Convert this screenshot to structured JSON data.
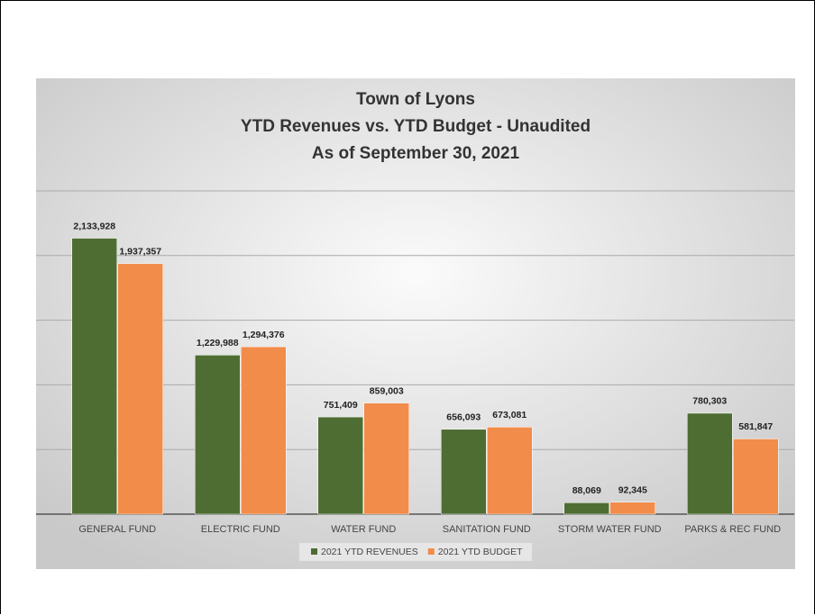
{
  "chart_data": {
    "type": "bar",
    "title": [
      "Town of Lyons",
      "YTD Revenues vs. YTD Budget - Unaudited",
      "As of September 30, 2021"
    ],
    "categories": [
      "GENERAL FUND",
      "ELECTRIC FUND",
      "WATER FUND",
      "SANITATION FUND",
      "STORM WATER FUND",
      "PARKS & REC FUND"
    ],
    "series": [
      {
        "name": "2021 YTD REVENUES",
        "color": "#4e6d33",
        "values": [
          2133928,
          1229988,
          751409,
          656093,
          88069,
          780303
        ],
        "value_labels": [
          "2,133,928",
          "1,229,988",
          "751,409",
          "656,093",
          "88,069",
          "780,303"
        ]
      },
      {
        "name": "2021 YTD BUDGET",
        "color": "#f28c4a",
        "values": [
          1937357,
          1294376,
          859003,
          673081,
          92345,
          581847
        ],
        "value_labels": [
          "1,937,357",
          "1,294,376",
          "859,003",
          "673,081",
          "92,345",
          "581,847"
        ]
      }
    ],
    "ylim": [
      0,
      2500000
    ],
    "yticks": [
      0,
      500000,
      1000000,
      1500000,
      2000000,
      2500000
    ],
    "grid": true,
    "legend": "bottom"
  }
}
